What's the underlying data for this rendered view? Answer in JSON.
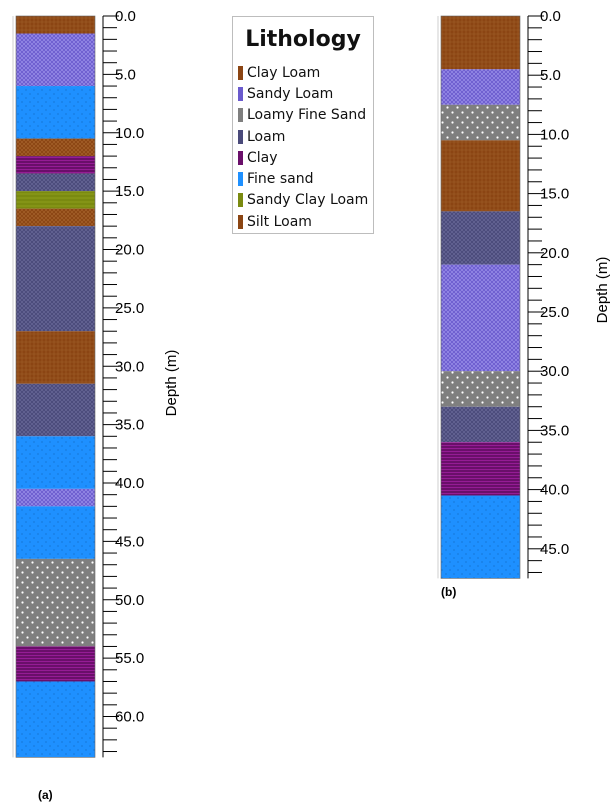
{
  "legend": {
    "title": "Lithology",
    "items": [
      {
        "label": "Clay Loam",
        "color": "#8B4513",
        "pattern": "clayloam"
      },
      {
        "label": "Sandy Loam",
        "color": "#6A5ACD",
        "pattern": "sandyloam"
      },
      {
        "label": "Loamy Fine Sand",
        "color": "#7f7f7f",
        "pattern": "loamyfine"
      },
      {
        "label": "Loam",
        "color": "#4a4a7a",
        "pattern": "loam"
      },
      {
        "label": "Clay",
        "color": "#6a0f6a",
        "pattern": "clay"
      },
      {
        "label": "Fine sand",
        "color": "#1E90FF",
        "pattern": "finesand"
      },
      {
        "label": "Sandy Clay Loam",
        "color": "#7a8a10",
        "pattern": "sandyclay"
      },
      {
        "label": "Silt Loam",
        "color": "#8B4513",
        "pattern": "siltloam"
      }
    ]
  },
  "logs": [
    {
      "panel_label": "(a)",
      "axis_label": "Depth (m)",
      "max_depth": 63.5,
      "tick_labels": [
        "0.0",
        "5.0",
        "10.0",
        "15.0",
        "20.0",
        "25.0",
        "30.0",
        "35.0",
        "40.0",
        "45.0",
        "50.0",
        "55.0",
        "60.0"
      ],
      "layers": [
        {
          "top": 0.0,
          "bottom": 1.5,
          "lithology": "Clay Loam"
        },
        {
          "top": 1.5,
          "bottom": 6.0,
          "lithology": "Sandy Loam"
        },
        {
          "top": 6.0,
          "bottom": 10.5,
          "lithology": "Fine sand"
        },
        {
          "top": 10.5,
          "bottom": 12.0,
          "lithology": "Silt Loam"
        },
        {
          "top": 12.0,
          "bottom": 13.5,
          "lithology": "Clay"
        },
        {
          "top": 13.5,
          "bottom": 15.0,
          "lithology": "Loam"
        },
        {
          "top": 15.0,
          "bottom": 16.5,
          "lithology": "Sandy Clay Loam"
        },
        {
          "top": 16.5,
          "bottom": 18.0,
          "lithology": "Silt Loam"
        },
        {
          "top": 18.0,
          "bottom": 27.0,
          "lithology": "Loam"
        },
        {
          "top": 27.0,
          "bottom": 31.5,
          "lithology": "Clay Loam"
        },
        {
          "top": 31.5,
          "bottom": 36.0,
          "lithology": "Loam"
        },
        {
          "top": 36.0,
          "bottom": 40.5,
          "lithology": "Fine sand"
        },
        {
          "top": 40.5,
          "bottom": 42.0,
          "lithology": "Sandy Loam"
        },
        {
          "top": 42.0,
          "bottom": 46.5,
          "lithology": "Fine sand"
        },
        {
          "top": 46.5,
          "bottom": 54.0,
          "lithology": "Loamy Fine Sand"
        },
        {
          "top": 54.0,
          "bottom": 57.0,
          "lithology": "Clay"
        },
        {
          "top": 57.0,
          "bottom": 63.5,
          "lithology": "Fine sand"
        }
      ]
    },
    {
      "panel_label": "(b)",
      "axis_label": "Depth (m)",
      "max_depth": 47.5,
      "tick_labels": [
        "0.0",
        "5.0",
        "10.0",
        "15.0",
        "20.0",
        "25.0",
        "30.0",
        "35.0",
        "40.0",
        "45.0"
      ],
      "layers": [
        {
          "top": 0.0,
          "bottom": 4.5,
          "lithology": "Clay Loam"
        },
        {
          "top": 4.5,
          "bottom": 7.5,
          "lithology": "Sandy Loam"
        },
        {
          "top": 7.5,
          "bottom": 10.5,
          "lithology": "Loamy Fine Sand"
        },
        {
          "top": 10.5,
          "bottom": 16.5,
          "lithology": "Clay Loam"
        },
        {
          "top": 16.5,
          "bottom": 21.0,
          "lithology": "Loam"
        },
        {
          "top": 21.0,
          "bottom": 30.0,
          "lithology": "Sandy Loam"
        },
        {
          "top": 30.0,
          "bottom": 33.0,
          "lithology": "Loamy Fine Sand"
        },
        {
          "top": 33.0,
          "bottom": 36.0,
          "lithology": "Loam"
        },
        {
          "top": 36.0,
          "bottom": 40.5,
          "lithology": "Clay"
        },
        {
          "top": 40.5,
          "bottom": 47.5,
          "lithology": "Fine sand"
        }
      ]
    }
  ]
}
